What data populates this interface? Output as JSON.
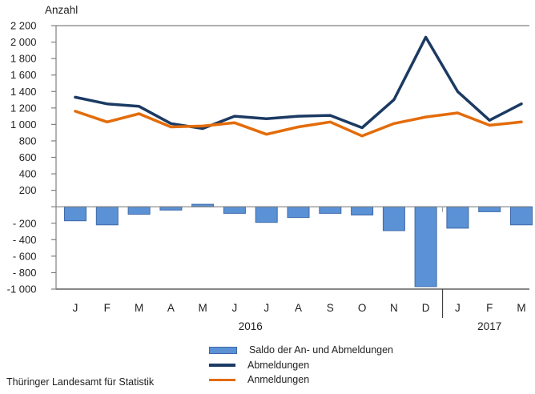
{
  "page": {
    "y_axis_title": "Anzahl",
    "source": "Thüringer Landesamt für Statistik"
  },
  "legend": {
    "items": [
      {
        "label": "Saldo der An- und Abmeldungen",
        "swatch": "bar",
        "color": "#5b91d5"
      },
      {
        "label": "Abmeldungen",
        "swatch": "line",
        "color": "#1b3a63"
      },
      {
        "label": "Anmeldungen",
        "swatch": "line",
        "color": "#e36c0a"
      }
    ]
  },
  "colors": {
    "bar_fill": "#5b91d5",
    "bar_border": "#3f69a9",
    "abmeldungen_line": "#1b3a63",
    "anmeldungen_line": "#e36c0a",
    "axis_gray": "#808080",
    "bottom_axis": "#404040",
    "text": "#1f1f1f"
  },
  "chart_data": {
    "type": "bar",
    "subtype": "combo bar+line",
    "title": "",
    "ylabel": "Anzahl",
    "xlabel": "",
    "ylim": [
      -1000,
      2200
    ],
    "y_tick_step": 200,
    "grid": "off (top border at 2200, zero line, bottom axis at -1000 only)",
    "legend_position": "bottom",
    "categories": [
      "J",
      "F",
      "M",
      "A",
      "M",
      "J",
      "J",
      "A",
      "S",
      "O",
      "N",
      "D",
      "J",
      "F",
      "M"
    ],
    "year_groups": [
      {
        "label": "2016",
        "from": 0,
        "to": 11
      },
      {
        "label": "2017",
        "from": 12,
        "to": 14
      }
    ],
    "y_ticks": [
      {
        "v": 2200,
        "label": "2 200"
      },
      {
        "v": 2000,
        "label": "2 000"
      },
      {
        "v": 1800,
        "label": "1 800"
      },
      {
        "v": 1600,
        "label": "1 600"
      },
      {
        "v": 1400,
        "label": "1 400"
      },
      {
        "v": 1200,
        "label": "1 200"
      },
      {
        "v": 1000,
        "label": "1 000"
      },
      {
        "v": 800,
        "label": "800"
      },
      {
        "v": 600,
        "label": "600"
      },
      {
        "v": 400,
        "label": "400"
      },
      {
        "v": 200,
        "label": "200"
      },
      {
        "v": 0,
        "label": ""
      },
      {
        "v": -200,
        "label": "- 200"
      },
      {
        "v": -400,
        "label": "- 400"
      },
      {
        "v": -600,
        "label": "- 600"
      },
      {
        "v": -800,
        "label": "- 800"
      },
      {
        "v": -1000,
        "label": "-1 000"
      }
    ],
    "series": [
      {
        "name": "Saldo der An- und Abmeldungen",
        "type": "bar",
        "color": "#5b91d5",
        "values": [
          -170,
          -220,
          -90,
          -40,
          30,
          -80,
          -190,
          -130,
          -80,
          -100,
          -290,
          -970,
          -260,
          -60,
          -220
        ]
      },
      {
        "name": "Abmeldungen",
        "type": "line",
        "color": "#1b3a63",
        "values": [
          1330,
          1250,
          1220,
          1010,
          950,
          1100,
          1070,
          1100,
          1110,
          960,
          1300,
          2060,
          1400,
          1050,
          1250
        ]
      },
      {
        "name": "Anmeldungen",
        "type": "line",
        "color": "#e36c0a",
        "values": [
          1160,
          1030,
          1130,
          970,
          980,
          1020,
          880,
          970,
          1030,
          860,
          1010,
          1090,
          1140,
          990,
          1030
        ]
      }
    ]
  }
}
